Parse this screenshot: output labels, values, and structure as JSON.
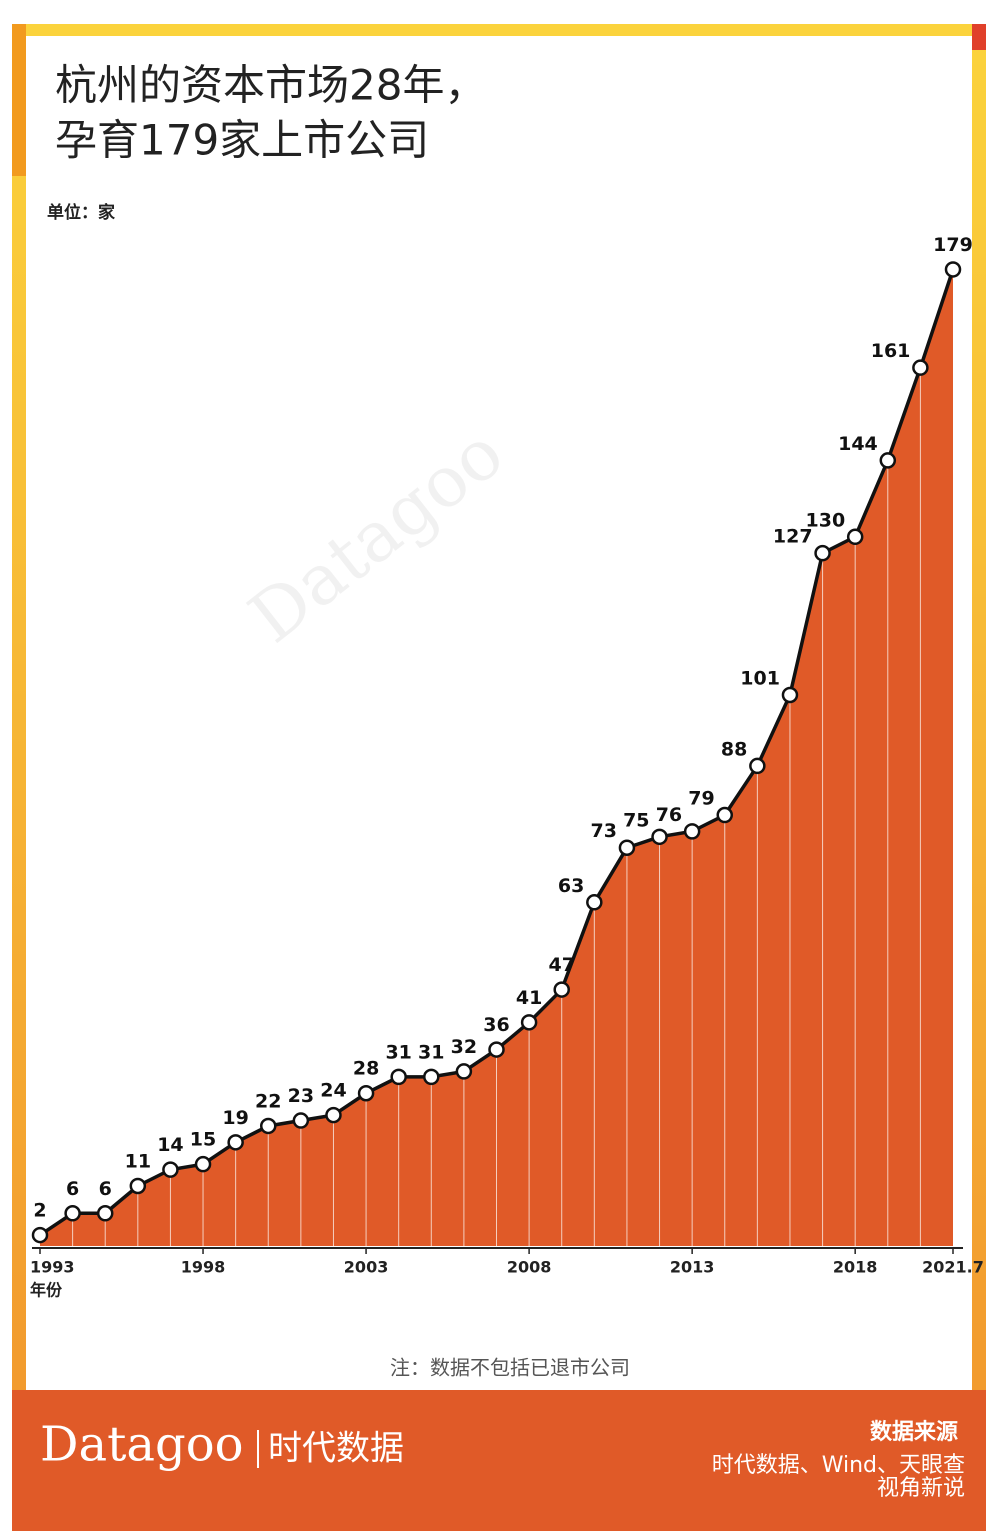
{
  "chart_data": {
    "type": "area-line",
    "title_lines": [
      "杭州的资本市场28年，",
      "孕育179家上市公司"
    ],
    "unit": "单位：家",
    "x_label": "年份",
    "categories": [
      "1993",
      null,
      null,
      null,
      null,
      "1998",
      null,
      null,
      null,
      null,
      "2003",
      null,
      null,
      null,
      null,
      "2008",
      null,
      null,
      null,
      null,
      "2013",
      null,
      null,
      null,
      null,
      "2018",
      null,
      null,
      "2021.7"
    ],
    "values": [
      2,
      6,
      6,
      11,
      14,
      15,
      19,
      22,
      23,
      24,
      28,
      31,
      31,
      32,
      36,
      41,
      47,
      63,
      73,
      75,
      76,
      79,
      88,
      101,
      127,
      130,
      144,
      161,
      179
    ],
    "color": "#e05a28",
    "ylim": [
      0,
      180
    ],
    "note": "注：数据不包括已退市公司"
  },
  "footer": {
    "brand": "Datagoo",
    "brand_cn": "时代数据",
    "source_title": "数据来源",
    "sources": "时代数据、Wind、天眼查",
    "watermark": "视角新说"
  }
}
